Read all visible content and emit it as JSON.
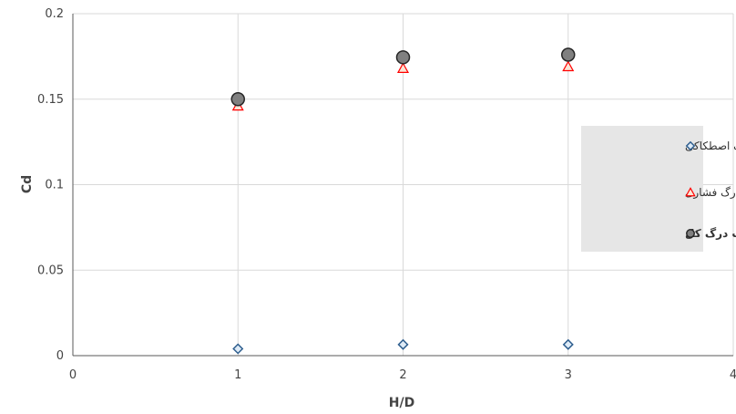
{
  "chart_data": {
    "type": "scatter",
    "xlabel": "H/D",
    "ylabel": "Cd",
    "xlim": [
      0,
      4
    ],
    "ylim": [
      0,
      0.2
    ],
    "x_ticks": [
      "0",
      "1",
      "2",
      "3",
      "4"
    ],
    "y_ticks": [
      "0",
      "0.05",
      "0.1",
      "0.15",
      "0.2"
    ],
    "grid": true,
    "legend_position": "right",
    "series": [
      {
        "name": "ضریب درگ اصطکاکی",
        "marker": "diamond",
        "color": "#2E75B6",
        "points": [
          {
            "x": 1,
            "y": 0.004
          },
          {
            "x": 2,
            "y": 0.0065
          },
          {
            "x": 3,
            "y": 0.0065
          }
        ]
      },
      {
        "name": "ضریب درگ فشاری",
        "marker": "triangle",
        "color": "#FF0000",
        "points": [
          {
            "x": 1,
            "y": 0.146
          },
          {
            "x": 2,
            "y": 0.168
          },
          {
            "x": 3,
            "y": 0.169
          }
        ]
      },
      {
        "name": "ضریب درگ کل",
        "marker": "circle",
        "color": "#808080",
        "bold": true,
        "points": [
          {
            "x": 1,
            "y": 0.15
          },
          {
            "x": 2,
            "y": 0.1745
          },
          {
            "x": 3,
            "y": 0.176
          }
        ]
      }
    ]
  }
}
